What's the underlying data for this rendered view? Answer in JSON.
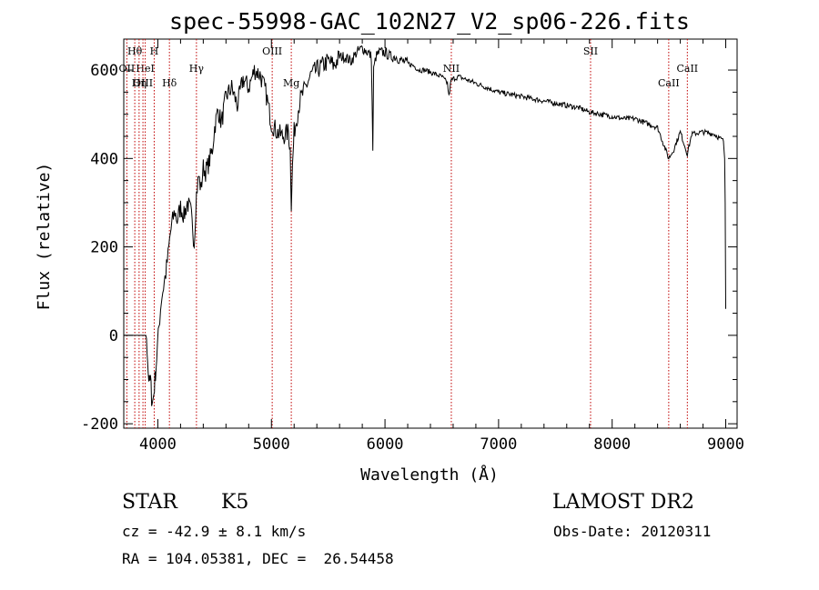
{
  "chart_data": {
    "type": "line",
    "title": "spec-55998-GAC_102N27_V2_sp06-226.fits",
    "xlabel": "Wavelength (Å)",
    "ylabel": "Flux (relative)",
    "xlim": [
      3700,
      9100
    ],
    "ylim": [
      -210,
      670
    ],
    "x_ticks": [
      4000,
      5000,
      6000,
      7000,
      8000,
      9000
    ],
    "y_ticks": [
      -200,
      0,
      200,
      400,
      600
    ],
    "grid": false,
    "series": [
      {
        "x": [
          3700,
          3900,
          3910,
          3915,
          3925,
          3935,
          3945,
          3955,
          3965,
          3975,
          3990,
          4010,
          4030,
          4050,
          4070,
          4090,
          4110,
          4130,
          4150,
          4170,
          4200,
          4230,
          4260,
          4290,
          4320,
          4340,
          4360,
          4380,
          4400,
          4420,
          4450,
          4480,
          4500,
          4530,
          4560,
          4600,
          4650,
          4700,
          4750,
          4800,
          4850,
          4900,
          4950,
          5000,
          5050,
          5100,
          5150,
          5165,
          5175,
          5185,
          5200,
          5250,
          5300,
          5350,
          5400,
          5450,
          5500,
          5550,
          5600,
          5650,
          5700,
          5750,
          5800,
          5850,
          5880,
          5893,
          5900,
          5920,
          5950,
          6000,
          6050,
          6100,
          6150,
          6200,
          6250,
          6300,
          6350,
          6400,
          6450,
          6500,
          6550,
          6563,
          6580,
          6600,
          6650,
          6700,
          6800,
          6900,
          7000,
          7100,
          7200,
          7300,
          7400,
          7500,
          7600,
          7700,
          7800,
          7900,
          8000,
          8100,
          8200,
          8300,
          8400,
          8498,
          8542,
          8600,
          8662,
          8700,
          8800,
          8900,
          8950,
          8980,
          8990,
          8995,
          9000
        ],
        "y": [
          0,
          0,
          -50,
          -80,
          -110,
          -100,
          -140,
          -150,
          -130,
          -100,
          -50,
          20,
          80,
          110,
          140,
          180,
          230,
          260,
          280,
          260,
          290,
          270,
          300,
          280,
          210,
          320,
          360,
          330,
          380,
          370,
          390,
          420,
          470,
          510,
          480,
          540,
          560,
          520,
          580,
          560,
          600,
          590,
          550,
          480,
          460,
          450,
          460,
          420,
          300,
          380,
          460,
          530,
          560,
          590,
          600,
          610,
          620,
          610,
          630,
          630,
          620,
          640,
          650,
          640,
          630,
          420,
          600,
          630,
          640,
          640,
          630,
          630,
          620,
          615,
          610,
          600,
          600,
          595,
          590,
          585,
          570,
          540,
          575,
          580,
          585,
          580,
          570,
          560,
          550,
          545,
          540,
          535,
          530,
          525,
          520,
          515,
          505,
          500,
          495,
          490,
          490,
          480,
          470,
          400,
          420,
          460,
          410,
          455,
          460,
          455,
          445,
          440,
          400,
          300,
          60
        ]
      }
    ],
    "spectral_lines": [
      {
        "label": "Hθ",
        "x": 3797,
        "tier": "top"
      },
      {
        "label": "H",
        "x": 3968,
        "tier": "top"
      },
      {
        "label": "OII",
        "x": 3727,
        "tier": "mid"
      },
      {
        "label": "HeI",
        "x": 3889,
        "tier": "mid"
      },
      {
        "label": "OIII",
        "x": 3869,
        "tier": "low"
      },
      {
        "label": "Hη",
        "x": 3835,
        "tier": "low"
      },
      {
        "label": "Hδ",
        "x": 4102,
        "tier": "low"
      },
      {
        "label": "Hγ",
        "x": 4340,
        "tier": "mid"
      },
      {
        "label": "OIII",
        "x": 5007,
        "tier": "top"
      },
      {
        "label": "Mg",
        "x": 5175,
        "tier": "low"
      },
      {
        "label": "NII",
        "x": 6584,
        "tier": "mid"
      },
      {
        "label": "SII",
        "x": 7810,
        "tier": "top"
      },
      {
        "label": "CaII",
        "x": 8498,
        "tier": "low"
      },
      {
        "label": "CaII",
        "x": 8662,
        "tier": "mid"
      }
    ]
  },
  "info": {
    "object_class": "STAR",
    "subclass": "K5",
    "survey": "LAMOST DR2",
    "cz": "cz = -42.9 ± 8.1 km/s",
    "obs_date": "Obs-Date: 20120311",
    "coords": "RA = 104.05381, DEC =  26.54458"
  },
  "colors": {
    "line_marker": "#c00000",
    "spectrum": "#000000"
  }
}
